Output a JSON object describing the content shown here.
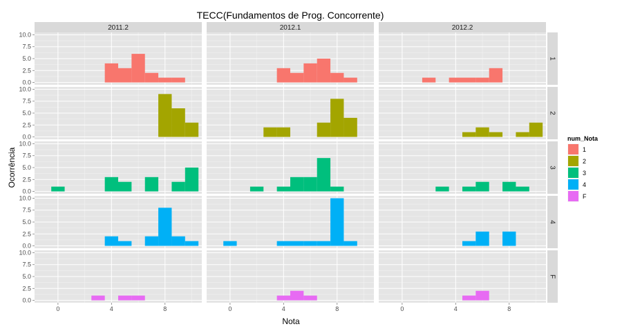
{
  "chart_data": {
    "type": "bar",
    "title": "TECC(Fundamentos de Prog. Concorrente)",
    "xlabel": "Nota",
    "ylabel": "Ocorrência",
    "columns": [
      "2011.2",
      "2012.1",
      "2012.2"
    ],
    "rows": [
      "1",
      "2",
      "3",
      "4",
      "F"
    ],
    "x_ticks": [
      0,
      4,
      8
    ],
    "y_ticks": [
      0.0,
      2.5,
      5.0,
      7.5,
      10.0
    ],
    "y_tick_labels": [
      "0.0",
      "2.5",
      "5.0",
      "7.5",
      "10.0"
    ],
    "xlim": [
      -1.75,
      10.75
    ],
    "ylim": [
      -0.5,
      10.5
    ],
    "bin_width": 1,
    "grid": true,
    "legend": {
      "title": "num_Nota",
      "position": "right",
      "items": [
        {
          "label": "1",
          "color": "#F8766D"
        },
        {
          "label": "2",
          "color": "#A3A500"
        },
        {
          "label": "3",
          "color": "#00BF7D"
        },
        {
          "label": "4",
          "color": "#00B0F6"
        },
        {
          "label": "F",
          "color": "#E76BF3"
        }
      ]
    },
    "panels": [
      {
        "row": "1",
        "col": "2011.2",
        "bins": [
          [
            4,
            4
          ],
          [
            5,
            3
          ],
          [
            6,
            6
          ],
          [
            7,
            2
          ],
          [
            8,
            1
          ],
          [
            9,
            1
          ]
        ]
      },
      {
        "row": "1",
        "col": "2012.1",
        "bins": [
          [
            4,
            3
          ],
          [
            5,
            2
          ],
          [
            6,
            4
          ],
          [
            7,
            5
          ],
          [
            8,
            2
          ],
          [
            9,
            1
          ]
        ]
      },
      {
        "row": "1",
        "col": "2012.2",
        "bins": [
          [
            2,
            1
          ],
          [
            4,
            1
          ],
          [
            5,
            1
          ],
          [
            6,
            1
          ],
          [
            7,
            3
          ]
        ]
      },
      {
        "row": "2",
        "col": "2011.2",
        "bins": [
          [
            8,
            9
          ],
          [
            9,
            6
          ],
          [
            10,
            3
          ]
        ]
      },
      {
        "row": "2",
        "col": "2012.1",
        "bins": [
          [
            3,
            2
          ],
          [
            4,
            2
          ],
          [
            7,
            3
          ],
          [
            8,
            8
          ],
          [
            9,
            4
          ]
        ]
      },
      {
        "row": "2",
        "col": "2012.2",
        "bins": [
          [
            5,
            1
          ],
          [
            6,
            2
          ],
          [
            7,
            1
          ],
          [
            9,
            1
          ],
          [
            10,
            3
          ]
        ]
      },
      {
        "row": "3",
        "col": "2011.2",
        "bins": [
          [
            0,
            1
          ],
          [
            4,
            3
          ],
          [
            5,
            2
          ],
          [
            7,
            3
          ],
          [
            9,
            2
          ],
          [
            10,
            5
          ]
        ]
      },
      {
        "row": "3",
        "col": "2012.1",
        "bins": [
          [
            2,
            1
          ],
          [
            4,
            1
          ],
          [
            5,
            3
          ],
          [
            6,
            3
          ],
          [
            7,
            7
          ],
          [
            8,
            1
          ]
        ]
      },
      {
        "row": "3",
        "col": "2012.2",
        "bins": [
          [
            3,
            1
          ],
          [
            5,
            1
          ],
          [
            6,
            2
          ],
          [
            8,
            2
          ],
          [
            9,
            1
          ]
        ]
      },
      {
        "row": "4",
        "col": "2011.2",
        "bins": [
          [
            4,
            2
          ],
          [
            5,
            1
          ],
          [
            7,
            2
          ],
          [
            8,
            8
          ],
          [
            9,
            2
          ],
          [
            10,
            1
          ]
        ]
      },
      {
        "row": "4",
        "col": "2012.1",
        "bins": [
          [
            0,
            1
          ],
          [
            4,
            1
          ],
          [
            5,
            1
          ],
          [
            6,
            1
          ],
          [
            7,
            1
          ],
          [
            8,
            10
          ],
          [
            9,
            1
          ]
        ]
      },
      {
        "row": "4",
        "col": "2012.2",
        "bins": [
          [
            5,
            1
          ],
          [
            6,
            3
          ],
          [
            8,
            3
          ]
        ]
      },
      {
        "row": "F",
        "col": "2011.2",
        "bins": [
          [
            3,
            1
          ],
          [
            5,
            1
          ],
          [
            6,
            1
          ]
        ]
      },
      {
        "row": "F",
        "col": "2012.1",
        "bins": [
          [
            4,
            1
          ],
          [
            5,
            2
          ],
          [
            6,
            1
          ]
        ]
      },
      {
        "row": "F",
        "col": "2012.2",
        "bins": [
          [
            5,
            1
          ],
          [
            6,
            2
          ]
        ]
      }
    ]
  }
}
